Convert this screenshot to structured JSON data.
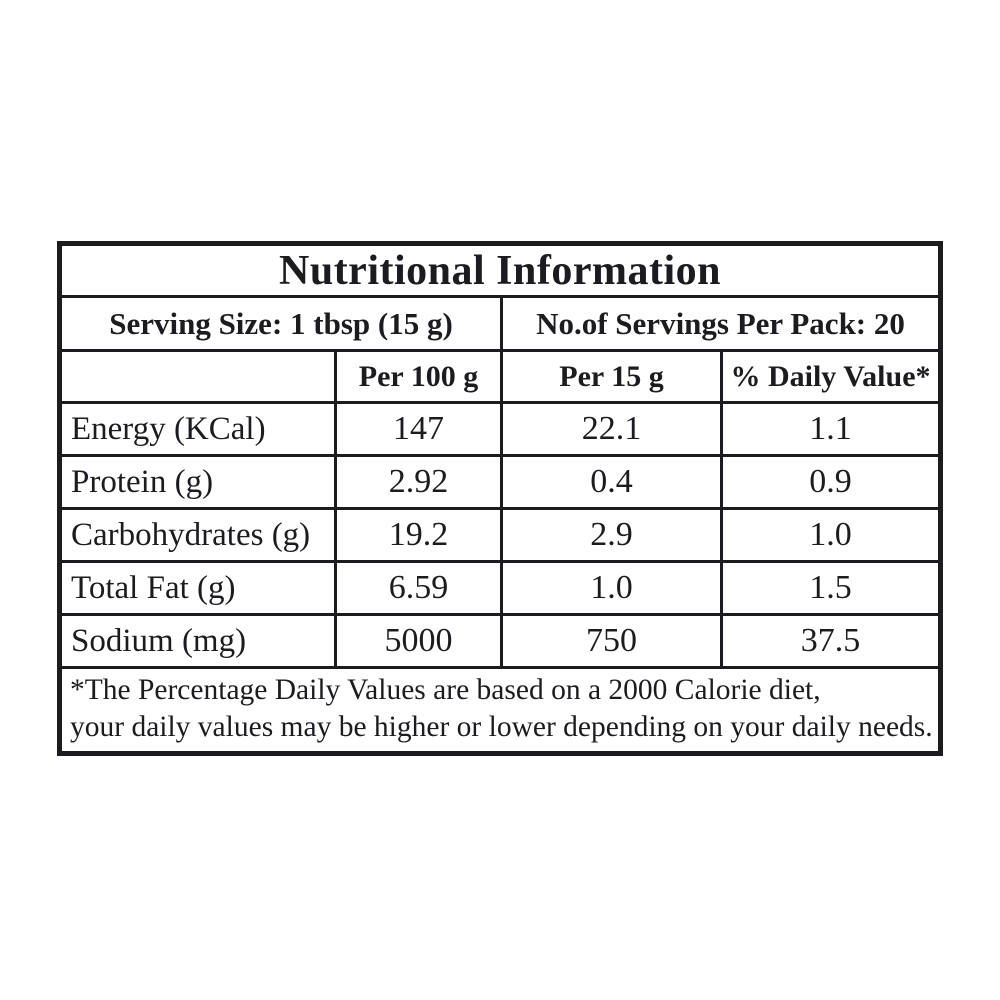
{
  "table": {
    "title": "Nutritional Information",
    "serving_size_label": "Serving Size: 1 tbsp (15 g)",
    "servings_per_pack_label": "No.of Servings Per Pack: 20",
    "columns": {
      "label": "",
      "per_100g": "Per 100 g",
      "per_15g": "Per 15 g",
      "daily_value": "% Daily Value*"
    },
    "rows": [
      {
        "label": "Energy (KCal)",
        "per_100g": "147",
        "per_15g": "22.1",
        "daily_value": "1.1"
      },
      {
        "label": "Protein (g)",
        "per_100g": "2.92",
        "per_15g": "0.4",
        "daily_value": "0.9"
      },
      {
        "label": "Carbohydrates (g)",
        "per_100g": "19.2",
        "per_15g": "2.9",
        "daily_value": "1.0"
      },
      {
        "label": "Total Fat (g)",
        "per_100g": "6.59",
        "per_15g": "1.0",
        "daily_value": "1.5"
      },
      {
        "label": "Sodium (mg)",
        "per_100g": "5000",
        "per_15g": "750",
        "daily_value": "37.5"
      }
    ],
    "footnote": {
      "line1": "*The Percentage Daily Values are based on a 2000 Calorie diet,",
      "line2": "your daily values may be higher or lower depending on your daily needs."
    },
    "colors": {
      "border": "#1c1b20",
      "text": "#1c1b20",
      "background": "#ffffff"
    }
  }
}
